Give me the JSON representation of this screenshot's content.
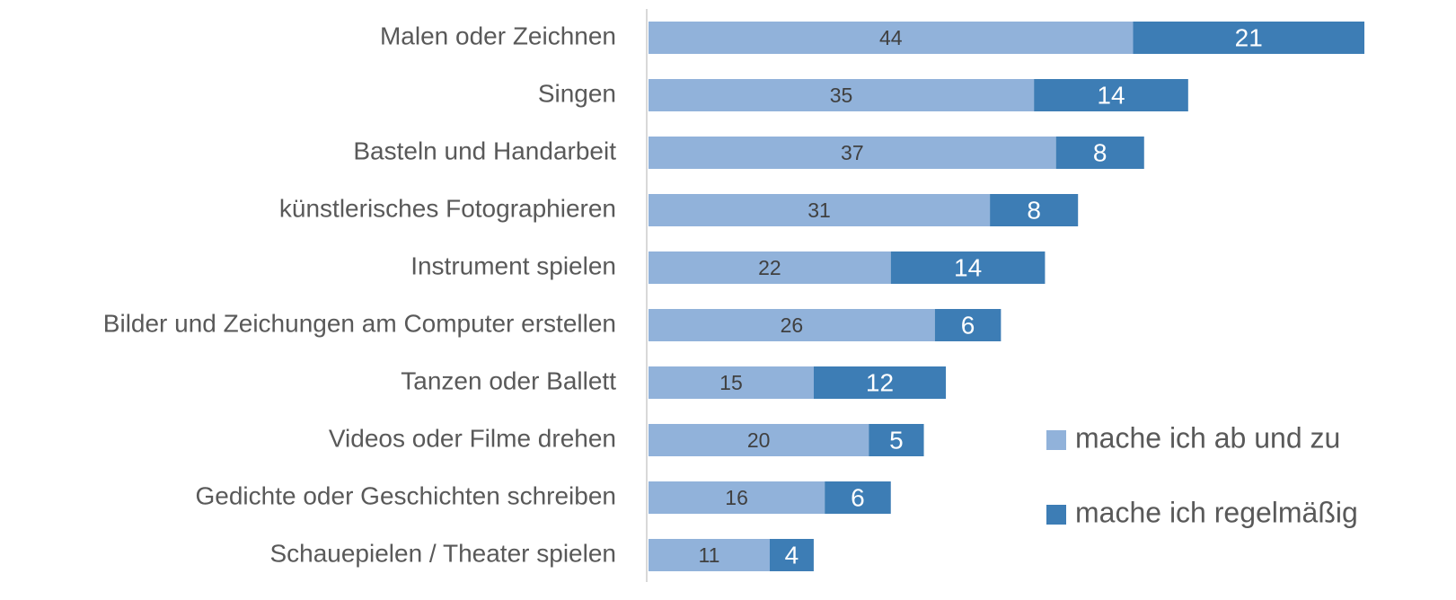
{
  "chart_data": {
    "type": "bar",
    "orientation": "horizontal",
    "stacked": true,
    "categories": [
      "Malen oder Zeichnen",
      "Singen",
      "Basteln und Handarbeit",
      "künstlerisches Fotographieren",
      "Instrument spielen",
      "Bilder und Zeichungen am Computer erstellen",
      "Tanzen oder Ballett",
      "Videos oder Filme drehen",
      "Gedichte oder Geschichten schreiben",
      "Schauepielen / Theater spielen"
    ],
    "series": [
      {
        "name": "mache ich ab und zu",
        "color": "#91b2da",
        "values": [
          44,
          35,
          37,
          31,
          22,
          26,
          15,
          20,
          16,
          11
        ]
      },
      {
        "name": "mache ich regelmäßig",
        "color": "#3d7db5",
        "values": [
          21,
          14,
          8,
          8,
          14,
          6,
          12,
          5,
          6,
          4
        ]
      }
    ],
    "legend": "right"
  }
}
